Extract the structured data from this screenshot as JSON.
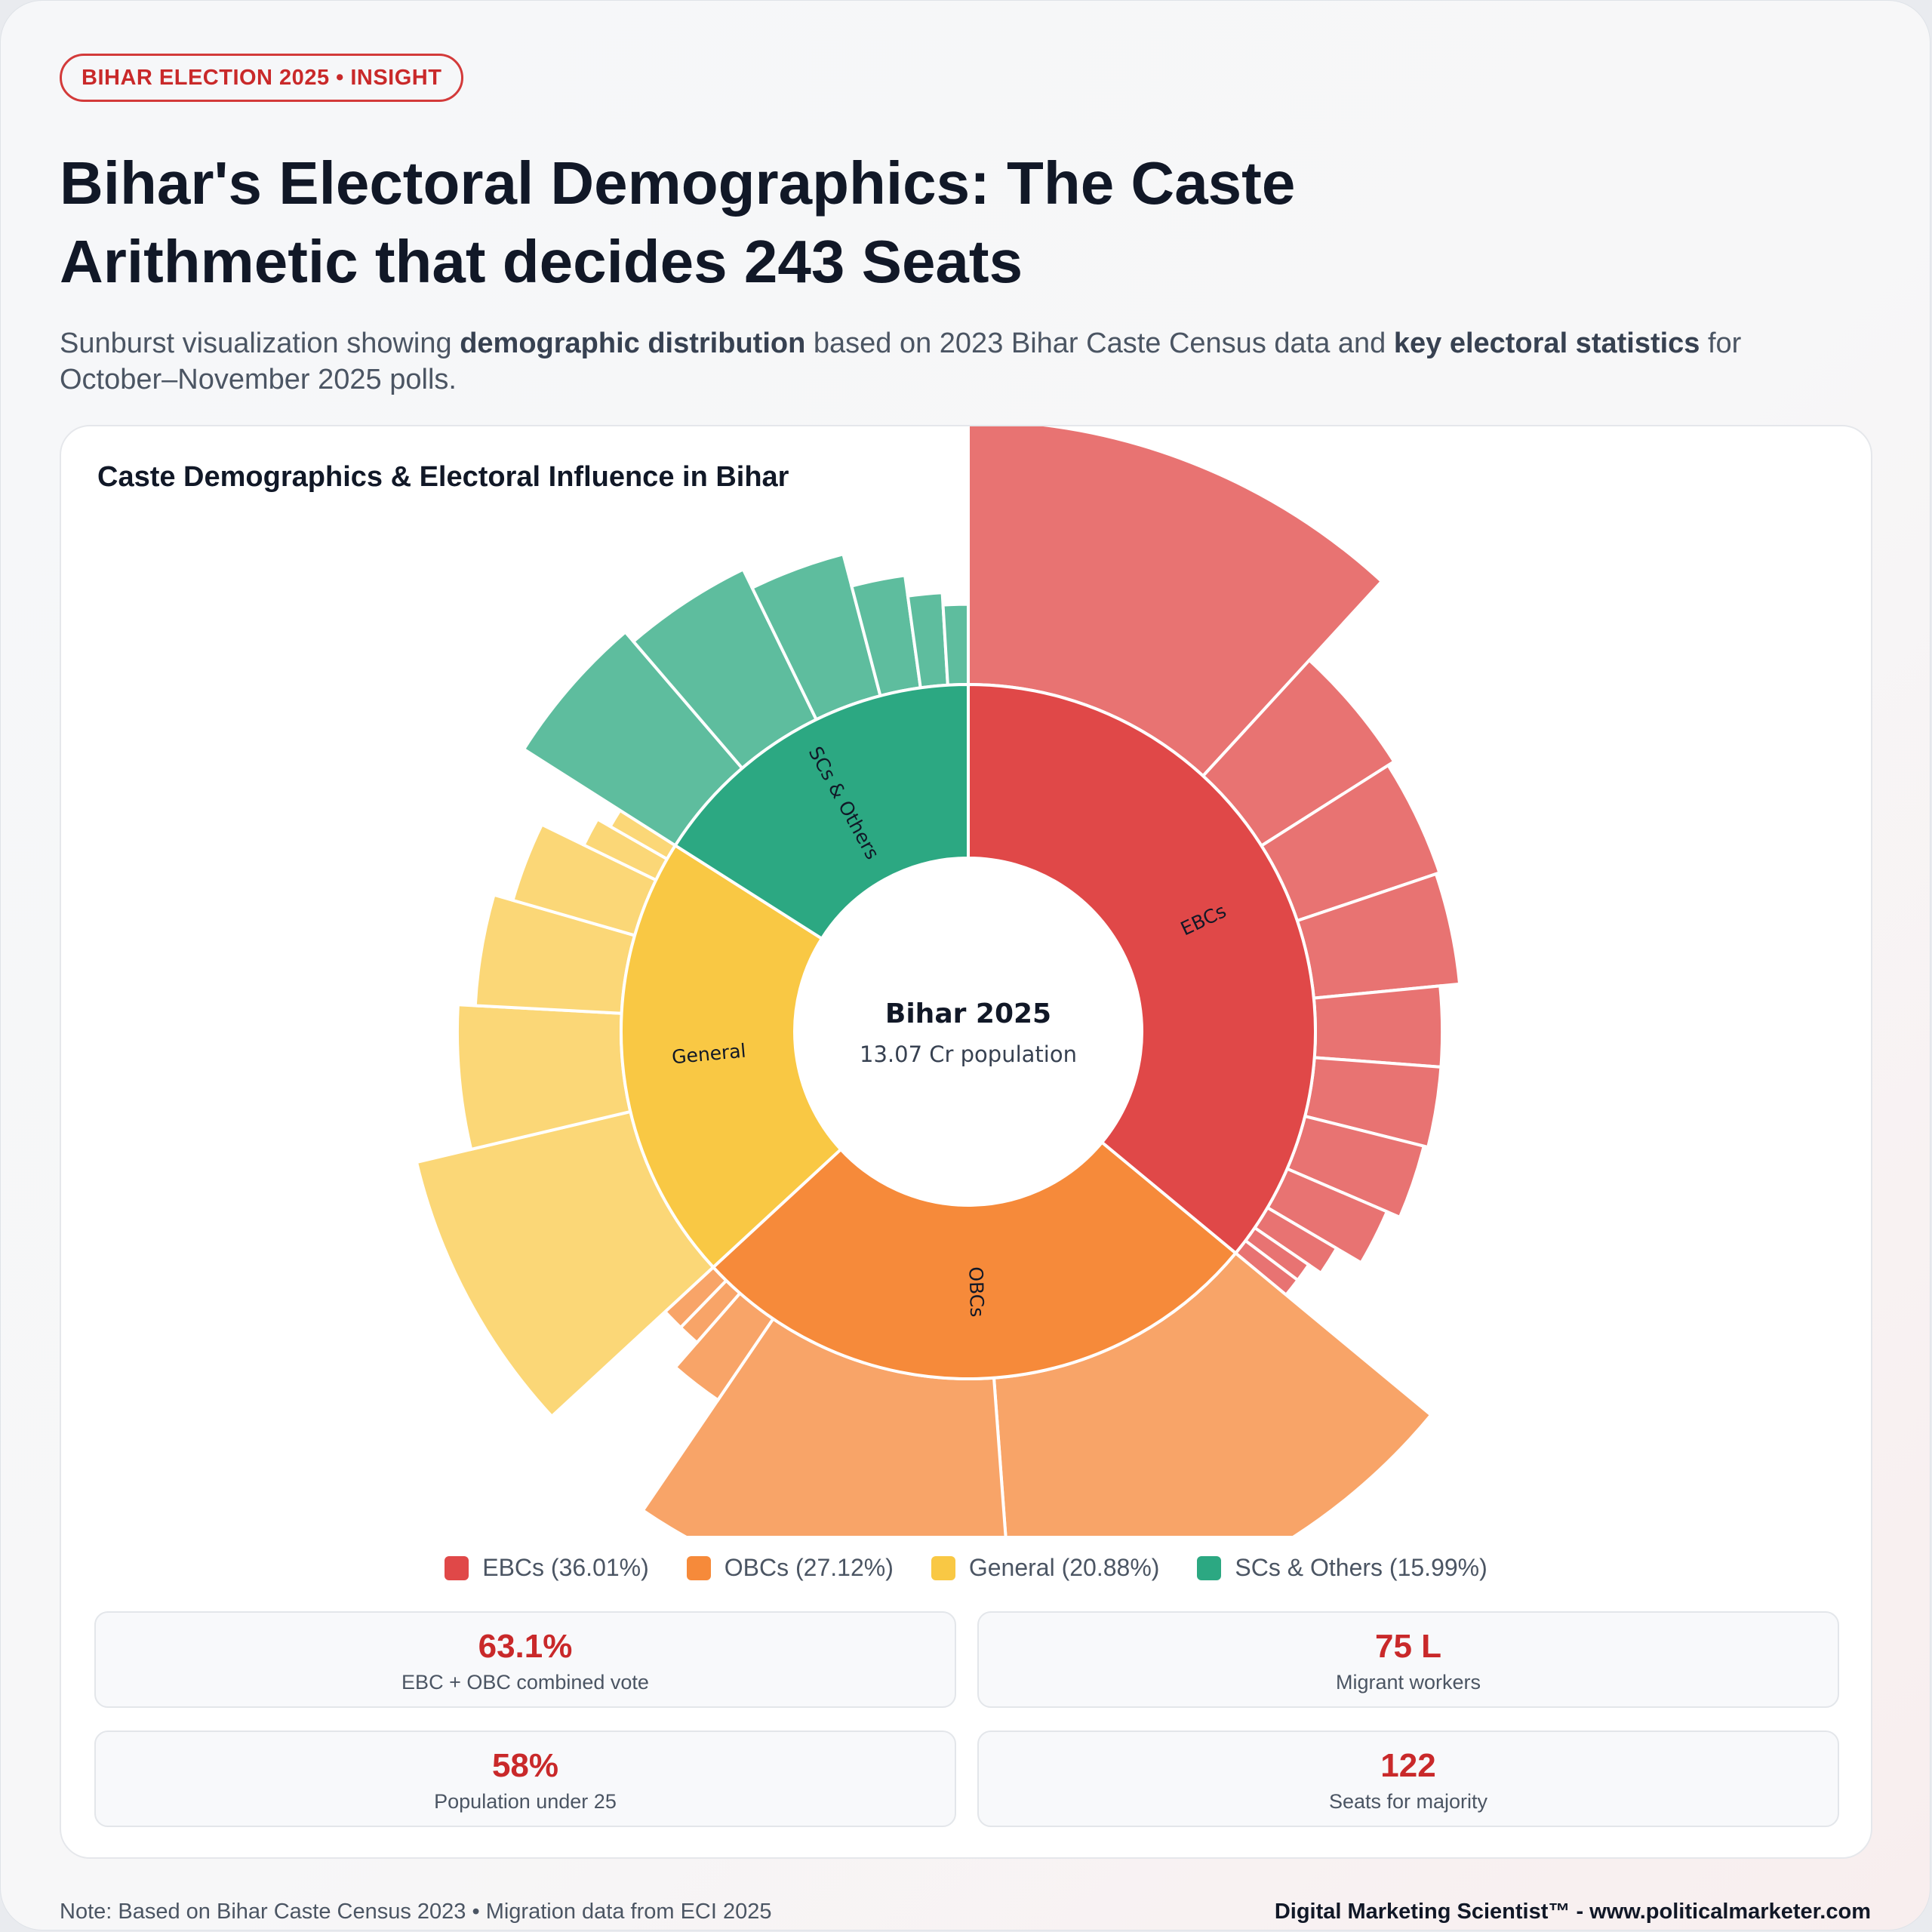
{
  "badge": "BIHAR ELECTION 2025 • INSIGHT",
  "title_line1": "Bihar's Electoral Demographics: The Caste",
  "title_line2": "Arithmetic that decides 243 Seats",
  "subtitle": {
    "p1": "Sunburst visualization showing ",
    "b1": "demographic distribution",
    "p2": " based on 2023 Bihar Caste Census data and ",
    "b2": "key electoral statistics",
    "p3": " for October–November 2025 polls."
  },
  "chart_data": {
    "type": "sunburst",
    "title": "Caste Demographics & Electoral Influence in Bihar",
    "center_label": "Bihar 2025",
    "center_sublabel": "13.07 Cr population",
    "categories": [
      {
        "name": "EBCs",
        "value": 36.01,
        "color": "#e04848",
        "light": "#e87372",
        "legend": "EBCs (36.01%)",
        "children": [
          6.5,
          2.3,
          2.1,
          2.0,
          1.5,
          1.5,
          1.4,
          1.1,
          0.6,
          0.4,
          0.4
        ]
      },
      {
        "name": "OBCs",
        "value": 27.12,
        "color": "#f68a3a",
        "light": "#f8a468",
        "legend": "OBCs (27.12%)",
        "children": [
          6.0,
          5.0,
          0.9,
          0.4,
          0.4
        ]
      },
      {
        "name": "General",
        "value": 20.88,
        "color": "#f9c844",
        "light": "#fbd777",
        "legend": "General (20.88%)",
        "children": [
          4.5,
          2.5,
          2.0,
          1.5,
          0.6,
          0.4
        ]
      },
      {
        "name": "SCs & Others",
        "value": 15.99,
        "color": "#2ca882",
        "light": "#5ebd9e",
        "legend": "SCs & Others (15.99%)",
        "children": [
          3.0,
          2.6,
          2.0,
          1.2,
          0.8,
          0.6
        ]
      }
    ]
  },
  "stats": [
    {
      "value": "63.1%",
      "label": "EBC + OBC combined vote"
    },
    {
      "value": "75 L",
      "label": "Migrant workers"
    },
    {
      "value": "58%",
      "label": "Population under 25"
    },
    {
      "value": "122",
      "label": "Seats for majority"
    }
  ],
  "footer": {
    "note": "Note: Based on Bihar Caste Census 2023 • Migration data from ECI 2025",
    "brand": "Digital Marketing Scientist™ - www.politicalmarketer.com"
  }
}
